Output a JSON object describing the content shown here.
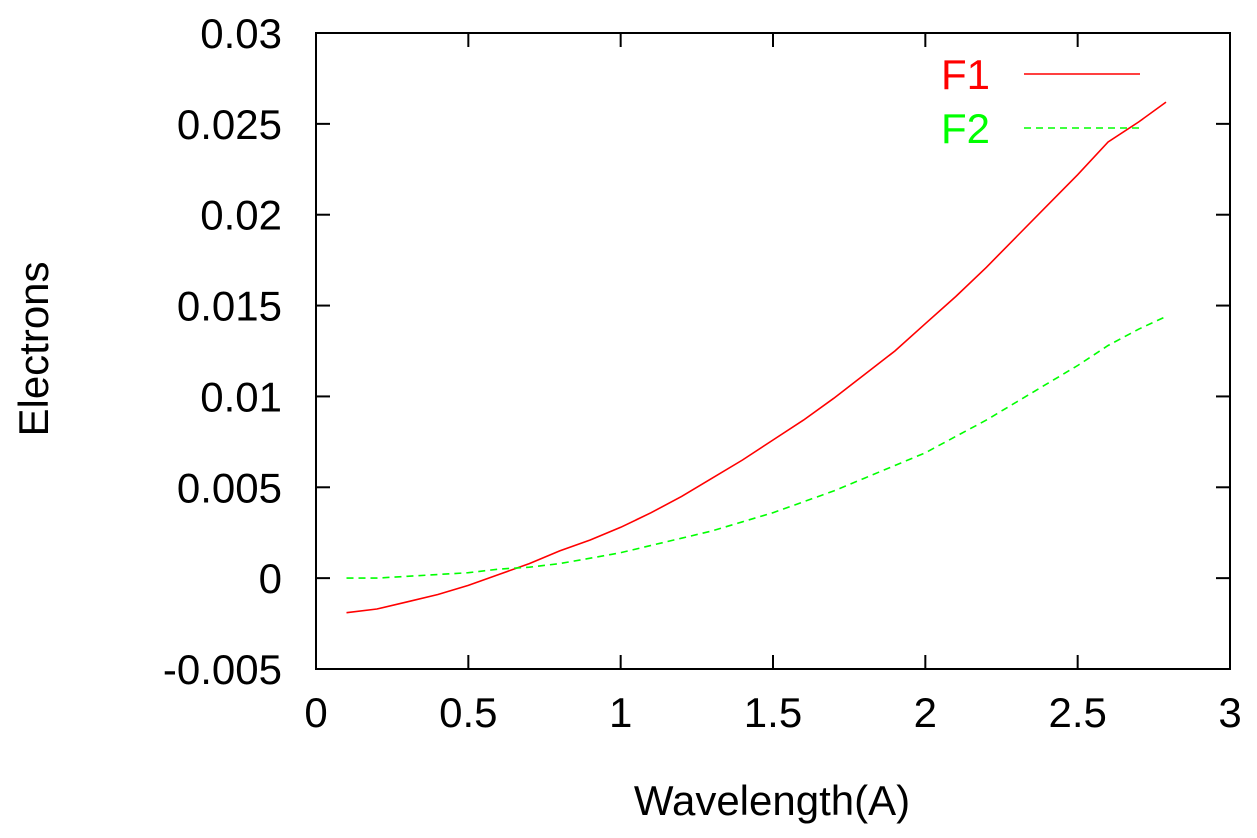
{
  "chart_data": {
    "type": "line",
    "xlabel": "Wavelength(A)",
    "ylabel": "Electrons",
    "xlim": [
      0,
      3
    ],
    "ylim": [
      -0.005,
      0.03
    ],
    "x_ticks": [
      "0",
      "0.5",
      "1",
      "1.5",
      "2",
      "2.5",
      "3"
    ],
    "y_ticks": [
      "-0.005",
      "0",
      "0.005",
      "0.01",
      "0.015",
      "0.02",
      "0.025",
      "0.03"
    ],
    "grid": false,
    "legend_position": "top-right",
    "series": [
      {
        "name": "F1",
        "color": "#ff0000",
        "line_style": "solid",
        "x": [
          0.1,
          0.2,
          0.3,
          0.4,
          0.5,
          0.6,
          0.7,
          0.8,
          0.9,
          1.0,
          1.1,
          1.2,
          1.3,
          1.4,
          1.5,
          1.6,
          1.7,
          1.8,
          1.9,
          2.0,
          2.1,
          2.2,
          2.3,
          2.4,
          2.5,
          2.6,
          2.7,
          2.79
        ],
        "values": [
          -0.0019,
          -0.0017,
          -0.0013,
          -0.0009,
          -0.0004,
          0.0002,
          0.0008,
          0.0015,
          0.0021,
          0.0028,
          0.0036,
          0.0045,
          0.0055,
          0.0065,
          0.0076,
          0.0087,
          0.0099,
          0.0112,
          0.0125,
          0.014,
          0.0155,
          0.0171,
          0.0188,
          0.0205,
          0.0222,
          0.024,
          0.0251,
          0.0262
        ]
      },
      {
        "name": "F2",
        "color": "#00ff00",
        "line_style": "dashed",
        "x": [
          0.1,
          0.2,
          0.3,
          0.4,
          0.5,
          0.6,
          0.7,
          0.8,
          0.9,
          1.0,
          1.1,
          1.2,
          1.3,
          1.4,
          1.5,
          1.6,
          1.7,
          1.8,
          1.9,
          2.0,
          2.1,
          2.2,
          2.3,
          2.4,
          2.5,
          2.6,
          2.7,
          2.79
        ],
        "values": [
          0.0,
          0.0,
          0.0001,
          0.0002,
          0.0003,
          0.0005,
          0.0006,
          0.0008,
          0.0011,
          0.0014,
          0.0018,
          0.0022,
          0.0026,
          0.0031,
          0.0036,
          0.0042,
          0.0048,
          0.0055,
          0.0062,
          0.0069,
          0.0078,
          0.0087,
          0.0097,
          0.0107,
          0.0117,
          0.0128,
          0.0137,
          0.0144
        ]
      }
    ]
  }
}
